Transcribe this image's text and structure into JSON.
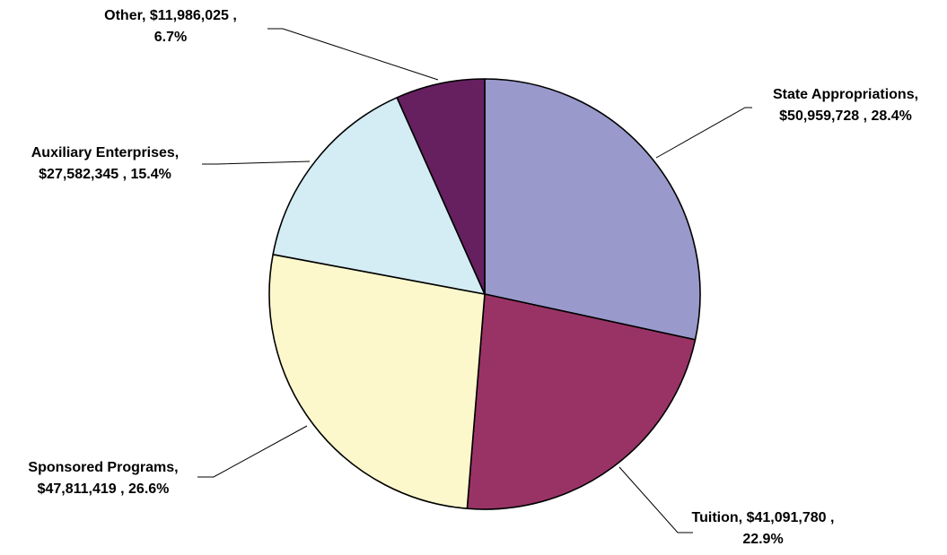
{
  "chart_data": {
    "type": "pie",
    "title": "",
    "start_angle_deg": 90,
    "direction": "clockwise",
    "slices": [
      {
        "label": "State Appropriations",
        "value": 50959728,
        "percent": 28.4,
        "text_lines": [
          "State Appropriations,",
          "$50,959,728 , 28.4%"
        ],
        "color": "#9999cc"
      },
      {
        "label": "Tuition",
        "value": 41091780,
        "percent": 22.9,
        "text_lines": [
          "Tuition, $41,091,780 ,",
          "22.9%"
        ],
        "color": "#993366"
      },
      {
        "label": "Sponsored Programs",
        "value": 47811419,
        "percent": 26.6,
        "text_lines": [
          "Sponsored Programs,",
          "$47,811,419 , 26.6%"
        ],
        "color": "#fcf8cc"
      },
      {
        "label": "Auxiliary Enterprises",
        "value": 27582345,
        "percent": 15.4,
        "text_lines": [
          "Auxiliary Enterprises,",
          "$27,582,345 , 15.4%"
        ],
        "color": "#d4ecf4"
      },
      {
        "label": "Other",
        "value": 11986025,
        "percent": 6.7,
        "text_lines": [
          "Other, $11,986,025 ,",
          "6.7%"
        ],
        "color": "#662060"
      }
    ]
  }
}
